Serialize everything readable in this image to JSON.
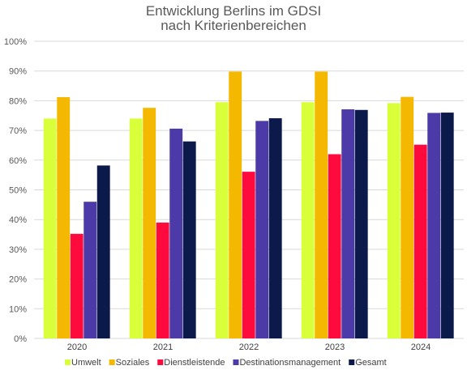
{
  "chart_data": {
    "type": "bar",
    "title_line1": "Entwicklung Berlins im GDSI",
    "title_line2": "nach Kriterienbereichen",
    "categories": [
      "2020",
      "2021",
      "2022",
      "2023",
      "2024"
    ],
    "series": [
      {
        "name": "Umwelt",
        "color": "#d9ff3b",
        "values": [
          74,
          74,
          79.5,
          79.5,
          79.2
        ]
      },
      {
        "name": "Soziales",
        "color": "#f5b800",
        "values": [
          81.2,
          77.6,
          89.8,
          89.8,
          81.3
        ]
      },
      {
        "name": "Dienstleistende",
        "color": "#ff0a3c",
        "values": [
          35.2,
          39,
          56.1,
          62,
          65.2
        ]
      },
      {
        "name": "Destinationsmanagement",
        "color": "#4b3aa8",
        "values": [
          46,
          70.6,
          73.2,
          77.1,
          75.9
        ]
      },
      {
        "name": "Gesamt",
        "color": "#0b1a4a",
        "values": [
          58.2,
          66.3,
          74.1,
          76.9,
          76
        ]
      }
    ],
    "ylim": [
      0,
      100
    ],
    "yticks": [
      "0%",
      "10%",
      "20%",
      "30%",
      "40%",
      "50%",
      "60%",
      "70%",
      "80%",
      "90%",
      "100%"
    ],
    "grid": true,
    "legend_position": "bottom"
  }
}
